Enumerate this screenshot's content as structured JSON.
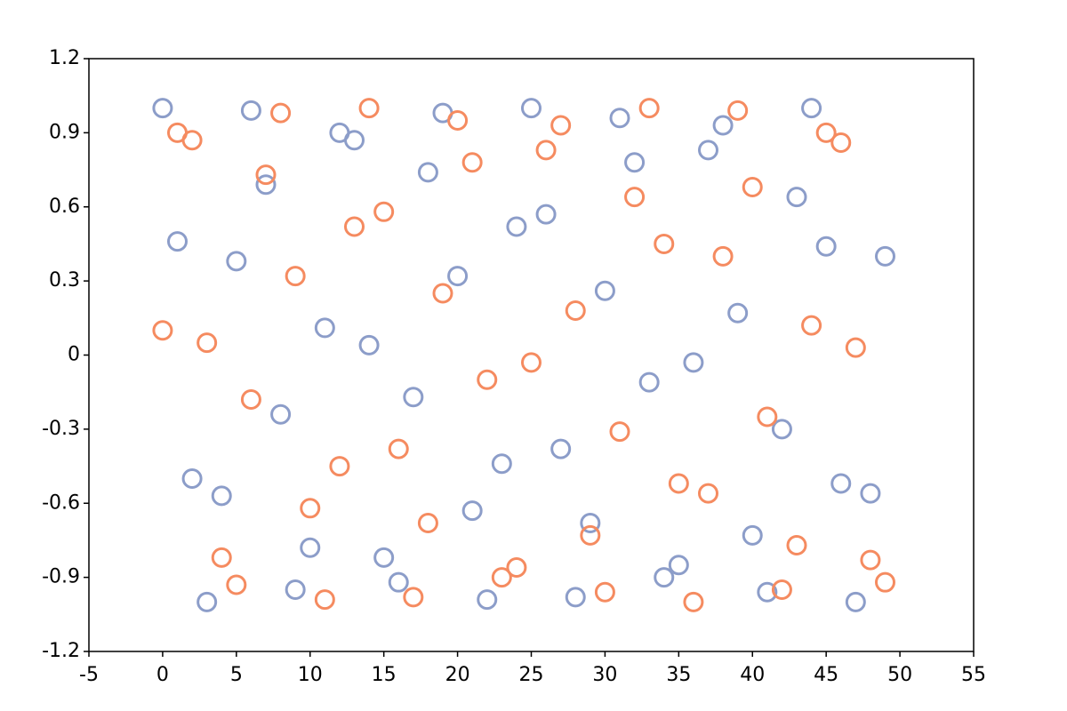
{
  "chart_data": {
    "type": "scatter",
    "x": [
      0,
      1,
      2,
      3,
      4,
      5,
      6,
      7,
      8,
      9,
      10,
      11,
      12,
      13,
      14,
      15,
      16,
      17,
      18,
      19,
      20,
      21,
      22,
      23,
      24,
      25,
      26,
      27,
      28,
      29,
      30,
      31,
      32,
      33,
      34,
      35,
      36,
      37,
      38,
      39,
      40,
      41,
      42,
      43,
      44,
      45,
      46,
      47,
      48,
      49
    ],
    "series": [
      {
        "color": "#8c9dc9",
        "values": [
          1.0,
          0.46,
          -0.5,
          -1.0,
          -0.57,
          0.38,
          0.99,
          0.69,
          -0.24,
          -0.95,
          -0.78,
          0.11,
          0.9,
          0.87,
          0.04,
          -0.82,
          -0.92,
          -0.17,
          0.74,
          0.98,
          0.32,
          -0.63,
          -0.99,
          -0.44,
          0.52,
          1.0,
          0.57,
          -0.38,
          -0.98,
          -0.68,
          0.26,
          0.96,
          0.78,
          -0.11,
          -0.9,
          -0.85,
          -0.03,
          0.83,
          0.93,
          0.17,
          -0.73,
          -0.96,
          -0.3,
          0.64,
          1.0,
          0.44,
          -0.52,
          -1.0,
          -0.56,
          0.4
        ]
      },
      {
        "color": "#f58b60",
        "values": [
          0.1,
          0.9,
          0.87,
          0.05,
          -0.82,
          -0.93,
          -0.18,
          0.73,
          0.98,
          0.32,
          -0.62,
          -0.99,
          -0.45,
          0.52,
          1.0,
          0.58,
          -0.38,
          -0.98,
          -0.68,
          0.25,
          0.95,
          0.78,
          -0.1,
          -0.9,
          -0.86,
          -0.03,
          0.83,
          0.93,
          0.18,
          -0.73,
          -0.96,
          -0.31,
          0.64,
          1.0,
          0.45,
          -0.52,
          -1.0,
          -0.56,
          0.4,
          0.99,
          0.68,
          -0.25,
          -0.95,
          -0.77,
          0.12,
          0.9,
          0.86,
          0.03,
          -0.83,
          -0.92
        ]
      }
    ],
    "xlim": [
      -5,
      55
    ],
    "xticks": [
      -5,
      0,
      5,
      10,
      15,
      20,
      25,
      30,
      35,
      40,
      45,
      50,
      55
    ],
    "ylim": [
      -1.2,
      1.2
    ],
    "yticks": [
      -1.2,
      -0.9,
      -0.6,
      -0.3,
      0,
      0.3,
      0.6,
      0.9,
      1.2
    ]
  }
}
